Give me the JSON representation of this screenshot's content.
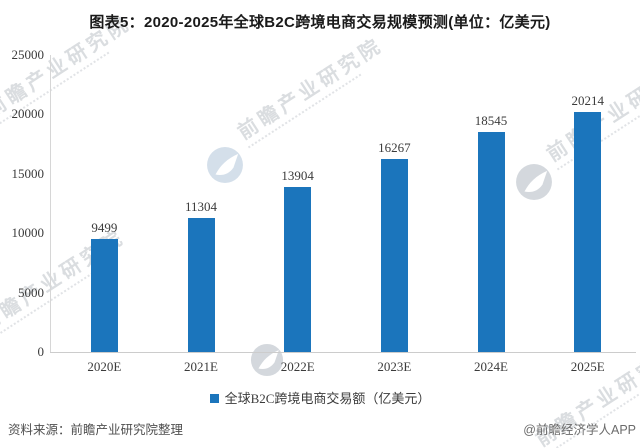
{
  "chart_data": {
    "type": "bar",
    "title": "图表5：2020-2025年全球B2C跨境电商交易规模预测(单位：亿美元)",
    "categories": [
      "2020E",
      "2021E",
      "2022E",
      "2023E",
      "2024E",
      "2025E"
    ],
    "values": [
      9499,
      11304,
      13904,
      16267,
      18545,
      20214
    ],
    "series_name": "全球B2C跨境电商交易额（亿美元）",
    "unit": "亿美元",
    "ylim": [
      0,
      25000
    ],
    "yticks": [
      0,
      5000,
      10000,
      15000,
      20000,
      25000
    ],
    "grid": false,
    "legend_position": "bottom",
    "value_labels": true,
    "bar_color": "#1b75bc"
  },
  "legend": {
    "swatch_color": "#1b75bc",
    "label": "全球B2C跨境电商交易额（亿美元）"
  },
  "footer": {
    "source_label": "资料来源：前瞻产业研究院整理",
    "credit_label": "@前瞻经济学人APP"
  },
  "watermark": {
    "text": "前瞻产业研究院",
    "logo_name": "prospective-bird-logo"
  },
  "colors": {
    "bar": "#1b75bc",
    "axis_line": "#d6d6d6",
    "label_text": "#3b3b3b",
    "title_text": "#1a1a1a",
    "source_text": "#4f4f4f",
    "credit_text": "#6b6b6b"
  }
}
